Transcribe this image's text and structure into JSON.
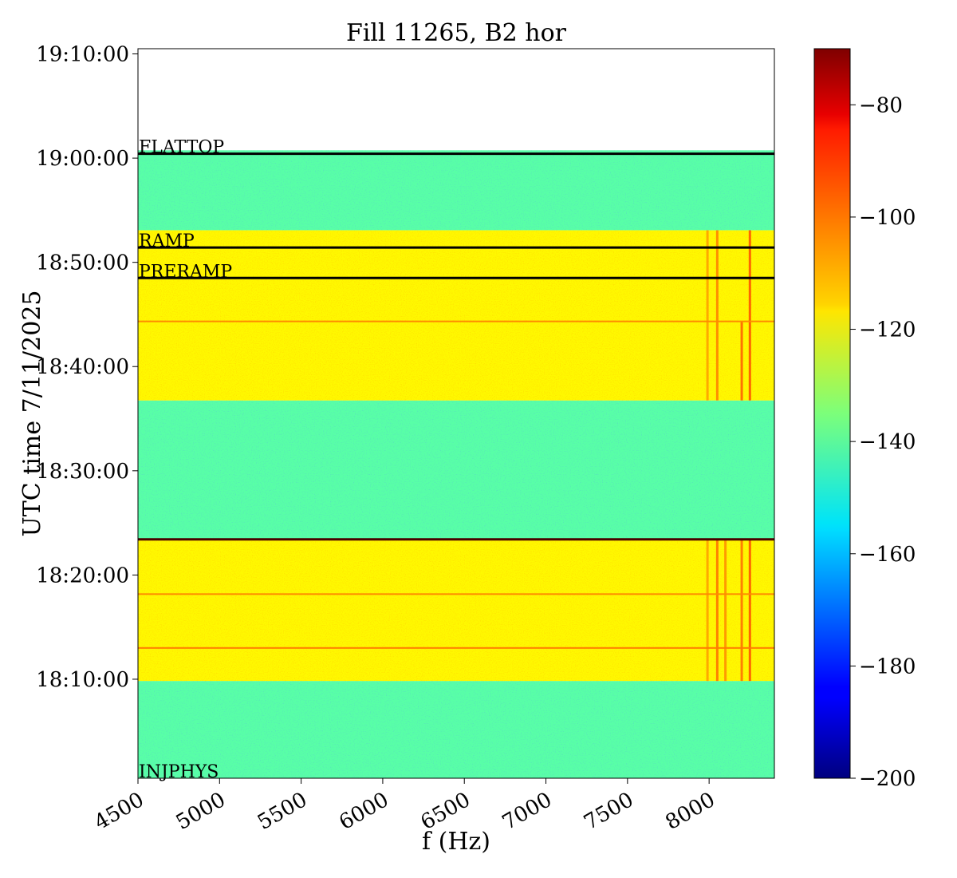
{
  "chart_data": {
    "type": "heatmap",
    "title": "Fill 11265, B2 hor",
    "xlabel": "f (Hz)",
    "ylabel": "UTC time 7/11/2025",
    "xlim": [
      4500,
      8400
    ],
    "ylim": [
      "18:00:30",
      "19:10:30"
    ],
    "x_ticks": [
      4500,
      5000,
      5500,
      6000,
      6500,
      7000,
      7500,
      8000
    ],
    "x_tick_labels": [
      "4500",
      "5000",
      "5500",
      "6000",
      "6500",
      "7000",
      "7500",
      "8000"
    ],
    "y_ticks": [
      "18:10:00",
      "18:20:00",
      "18:30:00",
      "18:40:00",
      "18:50:00",
      "19:00:00",
      "19:10:00"
    ],
    "y_tick_labels": [
      "18:10:00",
      "18:20:00",
      "18:30:00",
      "18:40:00",
      "18:50:00",
      "19:00:00",
      "19:10:00"
    ],
    "data_time_range": [
      "18:00:30",
      "19:00:45"
    ],
    "colorbar": {
      "colormap": "jet",
      "range": [
        -200,
        -70
      ],
      "ticks": [
        -80,
        -100,
        -120,
        -140,
        -160,
        -180,
        -200
      ],
      "tick_labels": [
        "−80",
        "−100",
        "−120",
        "−140",
        "−160",
        "−180",
        "−200"
      ]
    },
    "regions": [
      {
        "start": "18:00:30",
        "end": "18:09:50",
        "level_db": -140
      },
      {
        "start": "18:09:50",
        "end": "18:23:25",
        "level_db": -118
      },
      {
        "start": "18:23:25",
        "end": "18:36:45",
        "level_db": -140
      },
      {
        "start": "18:36:45",
        "end": "18:53:05",
        "level_db": -118
      },
      {
        "start": "18:53:05",
        "end": "19:00:45",
        "level_db": -140
      }
    ],
    "spectral_features": [
      {
        "f_hz": 7990,
        "start": "18:09:50",
        "end": "18:23:25",
        "level_db": -106
      },
      {
        "f_hz": 8050,
        "start": "18:09:50",
        "end": "18:23:25",
        "level_db": -100
      },
      {
        "f_hz": 8100,
        "start": "18:09:50",
        "end": "18:23:25",
        "level_db": -104
      },
      {
        "f_hz": 8200,
        "start": "18:09:50",
        "end": "18:23:25",
        "level_db": -100
      },
      {
        "f_hz": 8250,
        "start": "18:09:50",
        "end": "18:23:25",
        "level_db": -96
      },
      {
        "f_hz": 7990,
        "start": "18:36:45",
        "end": "18:53:05",
        "level_db": -106
      },
      {
        "f_hz": 8050,
        "start": "18:36:45",
        "end": "18:53:05",
        "level_db": -102
      },
      {
        "f_hz": 8200,
        "start": "18:36:45",
        "end": "18:44:20",
        "level_db": -98
      },
      {
        "f_hz": 8250,
        "start": "18:36:45",
        "end": "18:53:05",
        "level_db": -96
      }
    ],
    "line_features": [
      {
        "time": "18:13:00",
        "level_db": -102
      },
      {
        "time": "18:18:10",
        "level_db": -104
      },
      {
        "time": "18:44:20",
        "level_db": -104
      }
    ],
    "events": [
      {
        "label": "INJPHYS",
        "time": "18:00:30",
        "line": false
      },
      {
        "label": "",
        "time": "18:23:25",
        "line": true,
        "color": "#4a0000"
      },
      {
        "label": "PRERAMP",
        "time": "18:48:30",
        "line": true,
        "color": "#000000"
      },
      {
        "label": "RAMP",
        "time": "18:51:25",
        "line": true,
        "color": "#000000"
      },
      {
        "label": "FLATTOP",
        "time": "19:00:25",
        "line": true,
        "color": "#000000"
      }
    ]
  }
}
